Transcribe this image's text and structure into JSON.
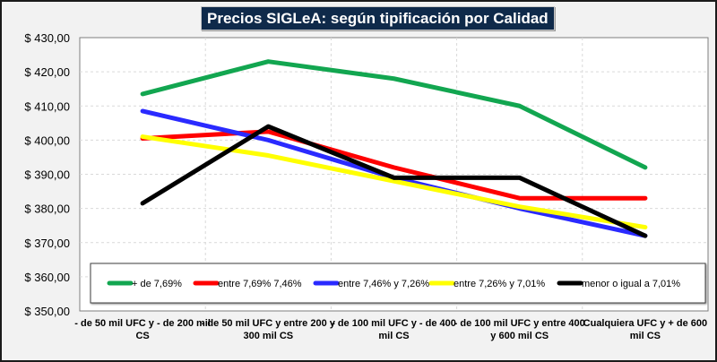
{
  "chart_data": {
    "type": "line",
    "title": "Precios SIGLeA: según tipificación por Calidad",
    "xlabel": "",
    "ylabel": "",
    "ylim": [
      350,
      430
    ],
    "ytick_step": 10,
    "ytick_labels": [
      "$ 350,00",
      "$ 360,00",
      "$ 370,00",
      "$ 380,00",
      "$ 390,00",
      "$ 400,00",
      "$ 410,00",
      "$ 420,00",
      "$ 430,00"
    ],
    "grid": true,
    "legend_position": "bottom-inside",
    "categories": [
      [
        "- de 50 mil UFC y - de 200 mil",
        "CS"
      ],
      [
        "- de 50 mil UFC y entre  200 y",
        "300 mil CS"
      ],
      [
        "- de 100 mil UFC y - de 400",
        "mil CS"
      ],
      [
        "- de 100 mil UFC y entre  400",
        "y 600 mil CS"
      ],
      [
        "Cualquiera UFC y + de 600",
        "mil CS"
      ]
    ],
    "series": [
      {
        "name": "+ de 7,69%",
        "color": "#12a650",
        "values": [
          413.5,
          423.0,
          418.0,
          410.0,
          392.0
        ]
      },
      {
        "name": "entre 7,69% 7,46%",
        "color": "#ff0000",
        "values": [
          400.5,
          402.5,
          392.0,
          383.0,
          383.0
        ]
      },
      {
        "name": "entre 7,46% y 7,26%",
        "color": "#2a2aff",
        "values": [
          408.5,
          400.0,
          389.0,
          380.0,
          372.0
        ]
      },
      {
        "name": "entre 7,26% y 7,01%",
        "color": "#ffff00",
        "values": [
          401.0,
          395.5,
          388.0,
          380.5,
          374.5
        ]
      },
      {
        "name": "menor o igual a 7,01%",
        "color": "#000000",
        "values": [
          381.5,
          404.0,
          389.0,
          389.0,
          372.0
        ]
      }
    ]
  }
}
